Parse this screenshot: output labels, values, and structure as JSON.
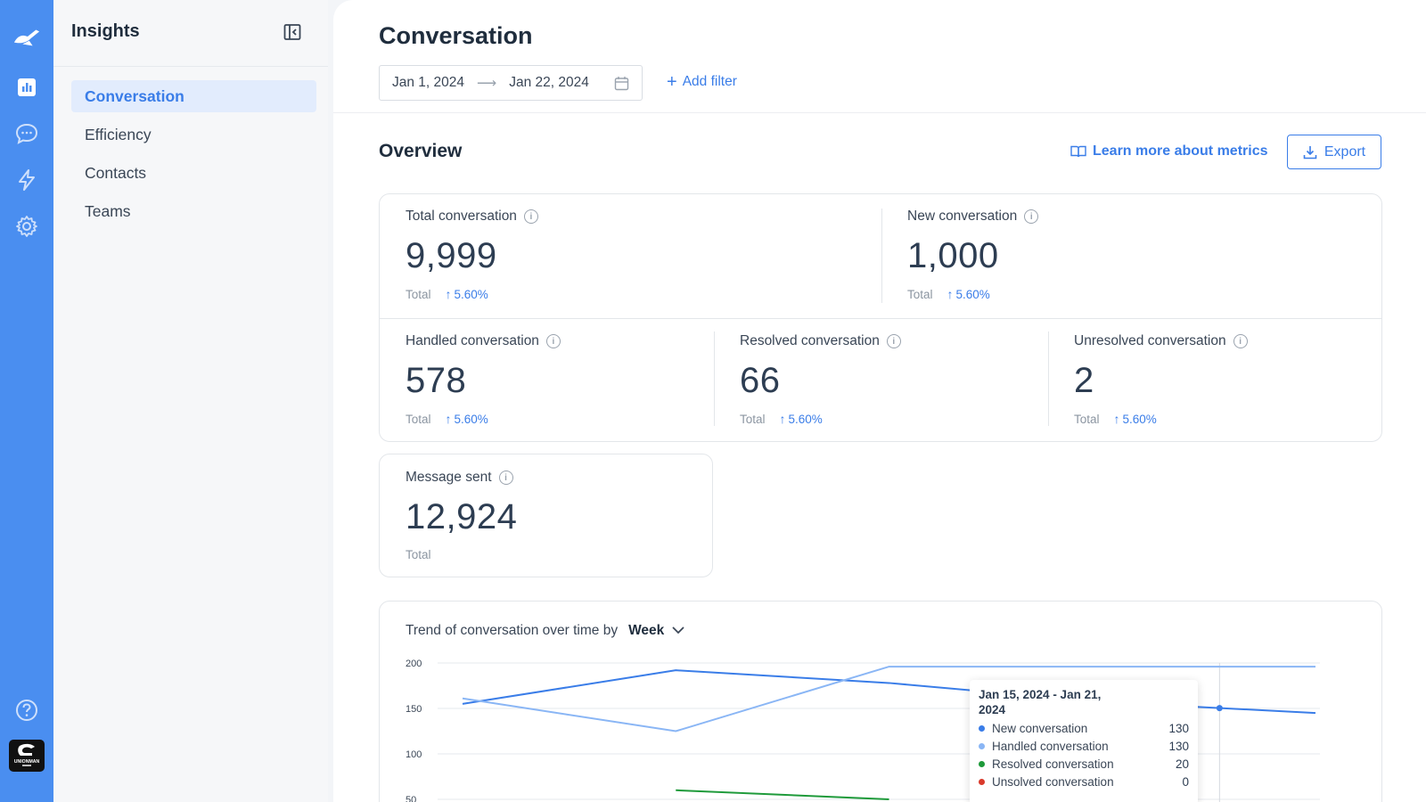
{
  "sidebar": {
    "title": "Insights",
    "items": [
      {
        "label": "Conversation",
        "active": true
      },
      {
        "label": "Efficiency",
        "active": false
      },
      {
        "label": "Contacts",
        "active": false
      },
      {
        "label": "Teams",
        "active": false
      }
    ]
  },
  "rail": {
    "icons": [
      "logo-icon",
      "analytics-icon",
      "chat-icon",
      "bolt-icon",
      "settings-icon",
      "help-icon",
      "avatar"
    ],
    "avatar_text": "UNIONMAN"
  },
  "header": {
    "title": "Conversation",
    "date_start": "Jan 1, 2024",
    "date_end": "Jan 22, 2024",
    "add_filter": "Add filter"
  },
  "overview": {
    "title": "Overview",
    "learn_more": "Learn more about metrics",
    "export": "Export"
  },
  "metrics": {
    "total": {
      "label": "Total conversation",
      "value": "9,999",
      "foot": "Total",
      "change": "5.60%"
    },
    "new": {
      "label": "New conversation",
      "value": "1,000",
      "foot": "Total",
      "change": "5.60%"
    },
    "handled": {
      "label": "Handled conversation",
      "value": "578",
      "foot": "Total",
      "change": "5.60%"
    },
    "resolved": {
      "label": "Resolved conversation",
      "value": "66",
      "foot": "Total",
      "change": "5.60%"
    },
    "unresolved": {
      "label": "Unresolved conversation",
      "value": "2",
      "foot": "Total",
      "change": "5.60%"
    },
    "message_sent": {
      "label": "Message sent",
      "value": "12,924",
      "foot": "Total"
    }
  },
  "trend": {
    "title": "Trend of conversation over time by",
    "period": "Week"
  },
  "tooltip": {
    "date": "Jan 15, 2024 - Jan 21, 2024",
    "rows": [
      {
        "label": "New conversation",
        "value": "130",
        "color": "#3a7de8"
      },
      {
        "label": "Handled  conversation",
        "value": "130",
        "color": "#8ab6f5"
      },
      {
        "label": "Resolved  conversation",
        "value": "20",
        "color": "#1e9a3a"
      },
      {
        "label": "Unsolved  conversation",
        "value": "0",
        "color": "#d93a2b"
      }
    ]
  },
  "colors": {
    "accent": "#3a7de8",
    "rail": "#4a8ef0"
  },
  "chart_data": {
    "type": "line",
    "title": "",
    "xlabel": "",
    "ylabel": "",
    "ylim": [
      50,
      200
    ],
    "y_ticks": [
      "200",
      "150",
      "100",
      "50"
    ],
    "x": [
      0,
      1,
      2,
      3,
      4
    ],
    "series": [
      {
        "name": "New conversation",
        "color": "#3a7de8",
        "values": [
          155,
          192,
          178,
          157,
          145
        ]
      },
      {
        "name": "Handled  conversation",
        "color": "#8ab6f5",
        "values": [
          161,
          125,
          196,
          196,
          196
        ]
      },
      {
        "name": "Resolved  conversation",
        "color": "#1e9a3a",
        "values": [
          null,
          60,
          50,
          null,
          null
        ]
      }
    ]
  }
}
